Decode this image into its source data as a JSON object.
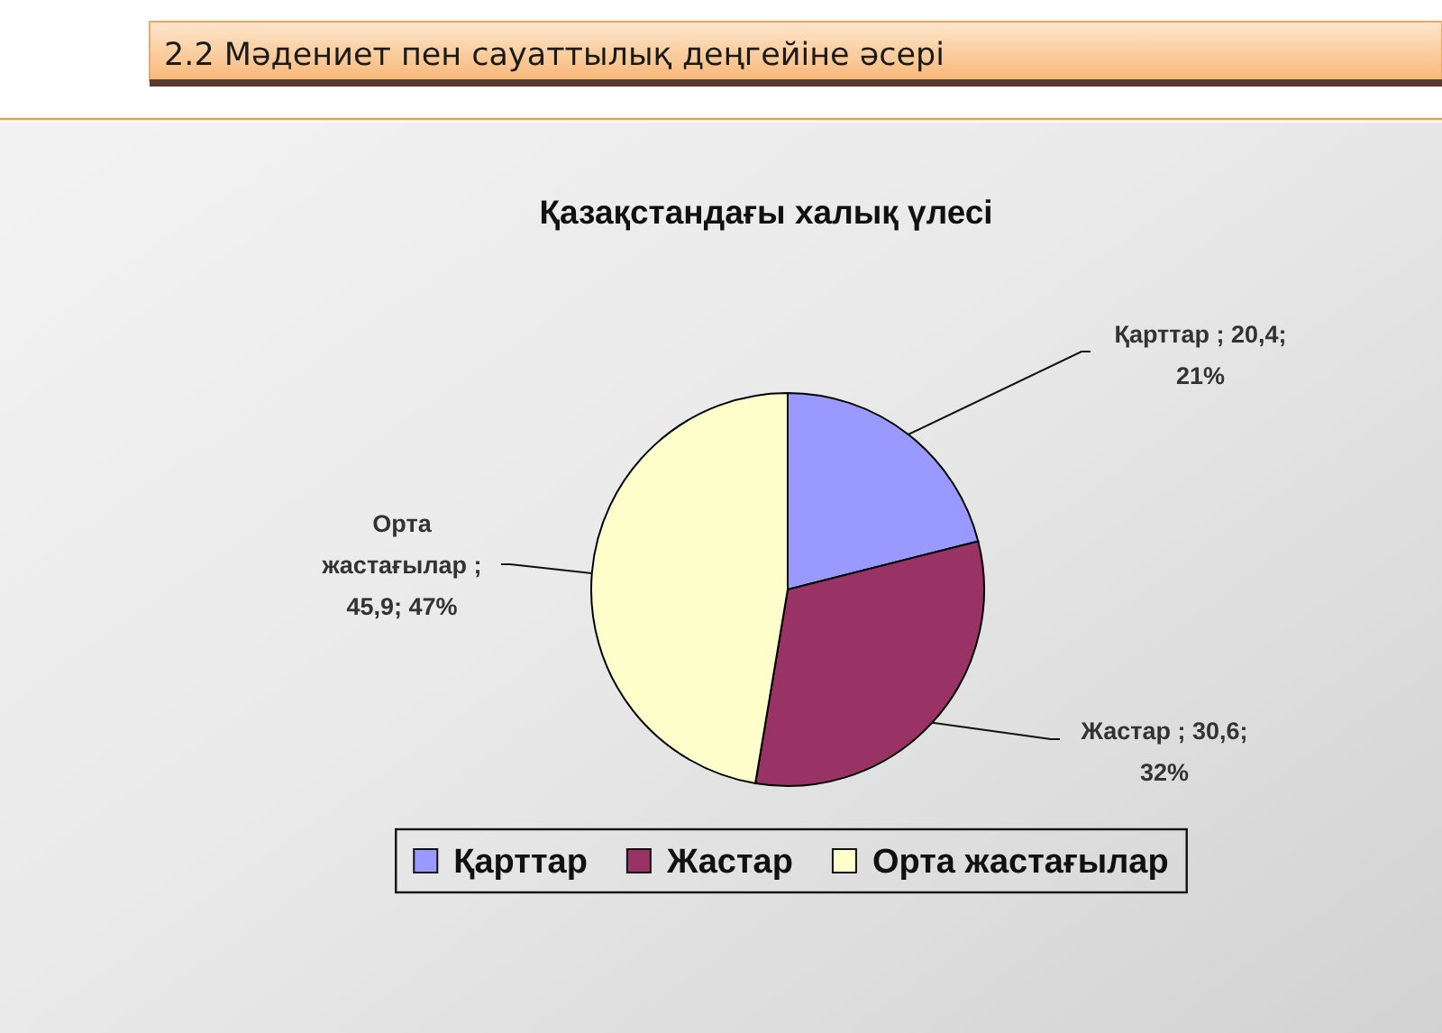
{
  "chart_data": {
    "type": "pie",
    "title": "2.2 Мәдениет пен сауаттылық деңгейіне әсері",
    "subtitle": "Қазақстандағы халық үлесі",
    "categories": [
      "Қарттар",
      "Жастар",
      "Орта жастағылар"
    ],
    "values": [
      20.4,
      30.6,
      45.9
    ],
    "colors": [
      "#9999ff",
      "#993366",
      "#ffffcc"
    ],
    "value_labels": [
      "Қарттар ; 20,4; 21%",
      "Жастар ; 30,6; 32%",
      "Орта жастағылар ; 45,9; 47%"
    ],
    "legend": "bottom"
  }
}
